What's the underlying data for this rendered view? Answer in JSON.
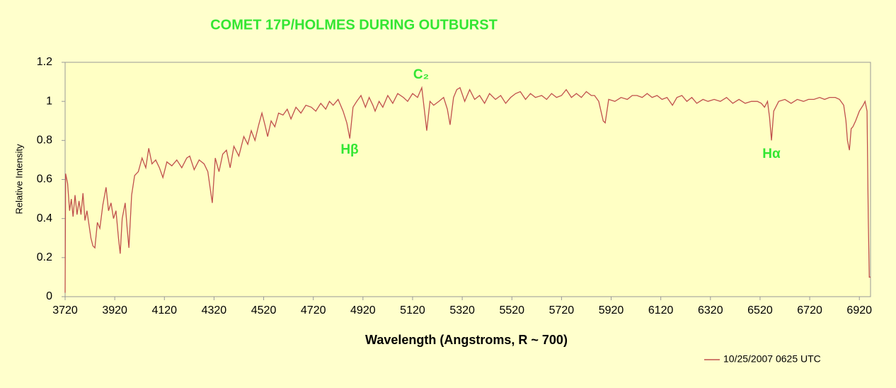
{
  "chart_data": {
    "type": "line",
    "title": "COMET  17P/HOLMES DURING OUTBURST",
    "x_label": "Wavelength (Angstroms, R ~ 700)",
    "y_label": "Relative Intensity",
    "annotations": [
      "Hβ",
      "C₂",
      "Hα"
    ],
    "xlim": [
      3720,
      6965
    ],
    "ylim": [
      0,
      1.2
    ],
    "xticks": [
      3720,
      3920,
      4120,
      4320,
      4520,
      4720,
      4920,
      5120,
      5320,
      5520,
      5720,
      5920,
      6120,
      6320,
      6520,
      6720,
      6920
    ],
    "yticks": [
      0,
      0.2,
      0.4,
      0.6,
      0.8,
      1,
      1.2
    ],
    "grid": false,
    "legend": "bottom-right",
    "x": [
      3720,
      3722,
      3730,
      3738,
      3745,
      3752,
      3760,
      3768,
      3776,
      3784,
      3792,
      3800,
      3808,
      3816,
      3824,
      3832,
      3840,
      3850,
      3860,
      3872,
      3885,
      3895,
      3905,
      3915,
      3925,
      3935,
      3942,
      3950,
      3962,
      3970,
      3977,
      3988,
      4000,
      4015,
      4030,
      4045,
      4057,
      4070,
      4085,
      4100,
      4114,
      4130,
      4150,
      4170,
      4190,
      4210,
      4222,
      4240,
      4260,
      4280,
      4295,
      4305,
      4313,
      4325,
      4340,
      4355,
      4370,
      4385,
      4400,
      4420,
      4440,
      4456,
      4470,
      4485,
      4500,
      4513,
      4525,
      4536,
      4550,
      4565,
      4580,
      4598,
      4615,
      4630,
      4650,
      4670,
      4690,
      4712,
      4730,
      4750,
      4770,
      4785,
      4800,
      4820,
      4840,
      4855,
      4867,
      4880,
      4895,
      4912,
      4930,
      4945,
      4960,
      4969,
      4985,
      5000,
      5020,
      5040,
      5060,
      5083,
      5100,
      5120,
      5140,
      5157,
      5168,
      5177,
      5190,
      5205,
      5226,
      5245,
      5260,
      5271,
      5285,
      5298,
      5311,
      5330,
      5350,
      5370,
      5390,
      5410,
      5430,
      5454,
      5475,
      5495,
      5515,
      5535,
      5554,
      5575,
      5595,
      5615,
      5640,
      5660,
      5680,
      5700,
      5720,
      5739,
      5760,
      5780,
      5800,
      5820,
      5840,
      5853,
      5870,
      5888,
      5896,
      5910,
      5935,
      5960,
      5985,
      6005,
      6024,
      6045,
      6065,
      6085,
      6105,
      6125,
      6145,
      6167,
      6185,
      6205,
      6225,
      6245,
      6265,
      6290,
      6310,
      6335,
      6360,
      6385,
      6410,
      6435,
      6460,
      6485,
      6509,
      6525,
      6538,
      6550,
      6558,
      6566,
      6575,
      6595,
      6620,
      6645,
      6670,
      6695,
      6715,
      6737,
      6760,
      6780,
      6800,
      6823,
      6840,
      6857,
      6866,
      6872,
      6880,
      6887,
      6894,
      6905,
      6920,
      6935,
      6943,
      6951,
      6956,
      6960,
      6965
    ],
    "series": [
      {
        "name": "10/25/2007 0625 UTC",
        "color": "#c0504d",
        "values": [
          0.02,
          0.63,
          0.58,
          0.44,
          0.5,
          0.41,
          0.52,
          0.42,
          0.49,
          0.42,
          0.53,
          0.39,
          0.44,
          0.37,
          0.3,
          0.26,
          0.25,
          0.38,
          0.35,
          0.47,
          0.56,
          0.44,
          0.48,
          0.4,
          0.44,
          0.3,
          0.22,
          0.4,
          0.48,
          0.35,
          0.25,
          0.52,
          0.62,
          0.64,
          0.71,
          0.66,
          0.76,
          0.68,
          0.7,
          0.66,
          0.61,
          0.69,
          0.67,
          0.7,
          0.66,
          0.71,
          0.72,
          0.65,
          0.7,
          0.68,
          0.64,
          0.55,
          0.48,
          0.71,
          0.64,
          0.73,
          0.75,
          0.66,
          0.77,
          0.72,
          0.82,
          0.78,
          0.85,
          0.8,
          0.88,
          0.94,
          0.88,
          0.82,
          0.9,
          0.87,
          0.94,
          0.93,
          0.96,
          0.91,
          0.97,
          0.94,
          0.98,
          0.97,
          0.95,
          0.99,
          0.96,
          1.0,
          0.98,
          1.01,
          0.95,
          0.89,
          0.81,
          0.97,
          1.0,
          1.03,
          0.97,
          1.02,
          0.98,
          0.95,
          1.0,
          0.97,
          1.03,
          0.99,
          1.04,
          1.02,
          1.0,
          1.04,
          1.02,
          1.07,
          0.95,
          0.85,
          1.0,
          0.98,
          1.0,
          1.02,
          0.96,
          0.88,
          1.02,
          1.06,
          1.07,
          1.0,
          1.06,
          1.01,
          1.03,
          0.99,
          1.04,
          1.01,
          1.03,
          0.99,
          1.02,
          1.04,
          1.05,
          1.01,
          1.04,
          1.02,
          1.03,
          1.01,
          1.04,
          1.02,
          1.03,
          1.06,
          1.02,
          1.04,
          1.02,
          1.05,
          1.03,
          1.03,
          1.0,
          0.9,
          0.89,
          1.01,
          1.0,
          1.02,
          1.01,
          1.03,
          1.03,
          1.02,
          1.04,
          1.02,
          1.03,
          1.01,
          1.02,
          0.98,
          1.02,
          1.03,
          1.0,
          1.02,
          0.99,
          1.01,
          1.0,
          1.01,
          1.0,
          1.02,
          0.99,
          1.01,
          0.99,
          1.0,
          1.0,
          0.99,
          0.97,
          1.0,
          0.92,
          0.8,
          0.95,
          1.0,
          1.01,
          0.99,
          1.01,
          1.0,
          1.01,
          1.01,
          1.02,
          1.01,
          1.02,
          1.02,
          1.01,
          0.98,
          0.9,
          0.8,
          0.75,
          0.86,
          0.87,
          0.9,
          0.95,
          0.98,
          1.0,
          0.95,
          0.4,
          0.1,
          0.1
        ]
      }
    ]
  }
}
